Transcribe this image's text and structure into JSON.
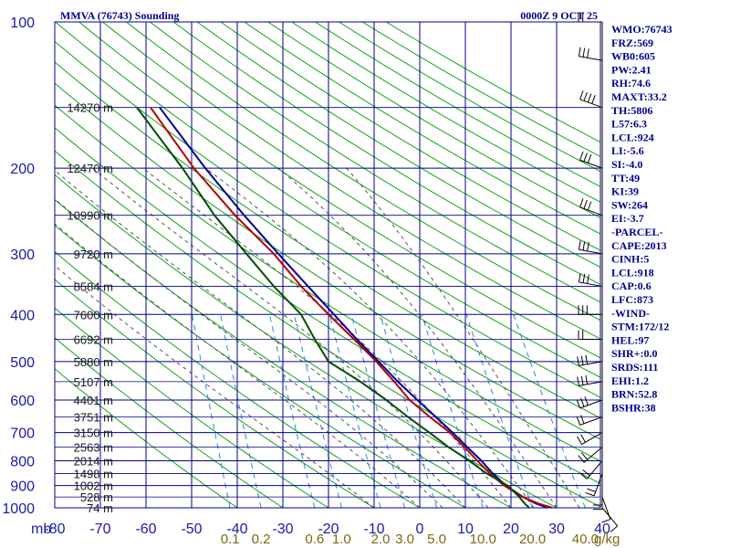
{
  "chart_data": {
    "type": "line",
    "subtype": "skew-t log-p sounding",
    "title": "MMVA (76743) Sounding",
    "valid_time": "0000Z  9 OCT 25",
    "pressure_unit_label": "mb",
    "pressure_levels": [
      100,
      200,
      300,
      400,
      500,
      600,
      700,
      800,
      900,
      1000
    ],
    "ylim": [
      1000,
      100
    ],
    "temperature_ticks": [
      -80,
      -70,
      -60,
      -50,
      -40,
      -30,
      -20,
      -10,
      0,
      10,
      20,
      30,
      40
    ],
    "xlim": [
      -80,
      40
    ],
    "mixing_ratio_labels": [
      "0.1",
      "0.2",
      "0.6",
      "1.0",
      "2.0",
      "3.0",
      "5.0",
      "10.0",
      "20.0",
      "40.0"
    ],
    "mixing_ratio_unit": "g/kg",
    "height_labels": [
      {
        "text": "14270 m",
        "p": 150
      },
      {
        "text": "12470 m",
        "p": 200
      },
      {
        "text": "10990 m",
        "p": 250
      },
      {
        "text": "9720 m",
        "p": 300
      },
      {
        "text": "8584 m",
        "p": 350
      },
      {
        "text": "7600 m",
        "p": 400
      },
      {
        "text": "6692 m",
        "p": 450
      },
      {
        "text": "5880 m",
        "p": 500
      },
      {
        "text": "5107 m",
        "p": 550
      },
      {
        "text": "4401 m",
        "p": 600
      },
      {
        "text": "3751 m",
        "p": 650
      },
      {
        "text": "3150 m",
        "p": 700
      },
      {
        "text": "2563 m",
        "p": 750
      },
      {
        "text": "2014 m",
        "p": 800
      },
      {
        "text": "1498 m",
        "p": 850
      },
      {
        "text": "1002 m",
        "p": 900
      },
      {
        "text": "528 m",
        "p": 950
      },
      {
        "text": "74 m",
        "p": 1000
      }
    ],
    "series": [
      {
        "name": "Parcel temperature",
        "color": "#00009a",
        "points": [
          [
            1000,
            28
          ],
          [
            980,
            25.5
          ],
          [
            950,
            22.6
          ],
          [
            900,
            18.9
          ],
          [
            850,
            16
          ],
          [
            800,
            13.5
          ],
          [
            750,
            10.4
          ],
          [
            700,
            7.2
          ],
          [
            650,
            3.5
          ],
          [
            600,
            -0.5
          ],
          [
            550,
            -4.8
          ],
          [
            500,
            -9
          ],
          [
            450,
            -13.8
          ],
          [
            400,
            -18.8
          ],
          [
            350,
            -24.5
          ],
          [
            300,
            -31
          ],
          [
            250,
            -38.5
          ],
          [
            200,
            -47
          ],
          [
            150,
            -57
          ]
        ]
      },
      {
        "name": "Temperature",
        "color": "#b40000",
        "points": [
          [
            1000,
            29
          ],
          [
            980,
            26
          ],
          [
            950,
            22.5
          ],
          [
            900,
            18.5
          ],
          [
            850,
            15.4
          ],
          [
            800,
            12.6
          ],
          [
            750,
            9.8
          ],
          [
            700,
            6.6
          ],
          [
            650,
            2.2
          ],
          [
            600,
            -2.2
          ],
          [
            550,
            -5.6
          ],
          [
            500,
            -9.5
          ],
          [
            450,
            -14.4
          ],
          [
            400,
            -20
          ],
          [
            350,
            -26
          ],
          [
            300,
            -32
          ],
          [
            250,
            -40.5
          ],
          [
            200,
            -49.5
          ],
          [
            150,
            -59
          ]
        ]
      },
      {
        "name": "Dewpoint",
        "color": "#004d00",
        "points": [
          [
            1000,
            24
          ],
          [
            980,
            23
          ],
          [
            950,
            21.8
          ],
          [
            900,
            19.3
          ],
          [
            850,
            14.7
          ],
          [
            800,
            10.8
          ],
          [
            750,
            6.3
          ],
          [
            700,
            2.1
          ],
          [
            650,
            -2.6
          ],
          [
            600,
            -7.3
          ],
          [
            550,
            -13
          ],
          [
            500,
            -20
          ],
          [
            450,
            -23
          ],
          [
            400,
            -26
          ],
          [
            350,
            -32
          ],
          [
            300,
            -38
          ],
          [
            250,
            -45
          ],
          [
            200,
            -52
          ],
          [
            150,
            -62
          ]
        ]
      }
    ]
  },
  "indices": [
    "WMO:76743",
    "FRZ:569",
    "WB0:605",
    "PW:2.41",
    "RH:74.6",
    "MAXT:33.2",
    "TH:5806",
    "L57:6.3",
    "LCL:924",
    "LI:-5.6",
    "SI:-4.0",
    "TT:49",
    "KI:39",
    "SW:264",
    "EI:-3.7",
    "-PARCEL-",
    "CAPE:2013",
    "CINH:5",
    "LCL:918",
    "CAP:0.6",
    "LFC:873",
    "-WIND-",
    "STM:172/12",
    "HEL:97",
    "SHR+:0.0",
    "SRDS:111",
    "EHI:1.2",
    "BRN:52.8",
    "BSHR:38"
  ],
  "wind_profile": [
    {
      "p": 1000,
      "dir": 140,
      "spd": 5
    },
    {
      "p": 950,
      "dir": 160,
      "spd": 10
    },
    {
      "p": 900,
      "dir": 180,
      "spd": 15
    },
    {
      "p": 850,
      "dir": 200,
      "spd": 15
    },
    {
      "p": 800,
      "dir": 220,
      "spd": 20
    },
    {
      "p": 750,
      "dir": 230,
      "spd": 20
    },
    {
      "p": 700,
      "dir": 240,
      "spd": 20
    },
    {
      "p": 650,
      "dir": 250,
      "spd": 20
    },
    {
      "p": 600,
      "dir": 250,
      "spd": 25
    },
    {
      "p": 550,
      "dir": 260,
      "spd": 25
    },
    {
      "p": 500,
      "dir": 260,
      "spd": 25
    },
    {
      "p": 450,
      "dir": 270,
      "spd": 20
    },
    {
      "p": 400,
      "dir": 270,
      "spd": 25
    },
    {
      "p": 350,
      "dir": 280,
      "spd": 30
    },
    {
      "p": 300,
      "dir": 280,
      "spd": 30
    },
    {
      "p": 250,
      "dir": 290,
      "spd": 25
    },
    {
      "p": 200,
      "dir": 290,
      "spd": 30
    },
    {
      "p": 150,
      "dir": 290,
      "spd": 35
    },
    {
      "p": 120,
      "dir": 280,
      "spd": 25
    },
    {
      "p": 100,
      "dir": 270,
      "spd": 20
    }
  ],
  "colors": {
    "isobar": "#00008b",
    "isotherm": "#00008b",
    "dry_adiabat": "#1aa01a",
    "moist_adiabat": "#555555",
    "mixing_ratio": "#2a8ad0"
  }
}
